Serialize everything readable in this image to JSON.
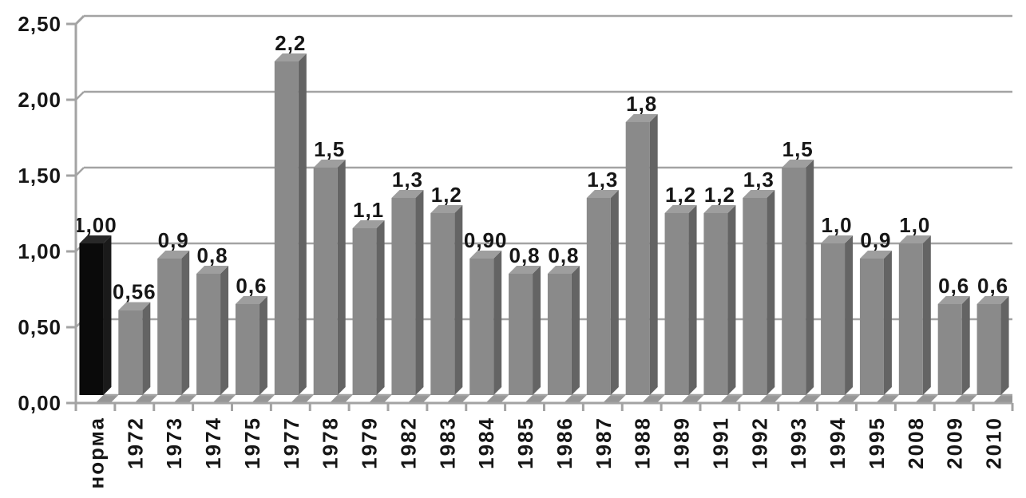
{
  "chart_data": {
    "type": "bar",
    "style": "3d-column",
    "title": "",
    "xlabel": "",
    "ylabel": "",
    "ylim": [
      0,
      2.5
    ],
    "grid": true,
    "legend": "none",
    "categories": [
      "норма",
      "1972",
      "1973",
      "1974",
      "1975",
      "1977",
      "1978",
      "1979",
      "1982",
      "1983",
      "1984",
      "1985",
      "1986",
      "1987",
      "1988",
      "1989",
      "1991",
      "1992",
      "1993",
      "1994",
      "1995",
      "2008",
      "2009",
      "2010"
    ],
    "values": [
      1.0,
      0.56,
      0.9,
      0.8,
      0.6,
      2.2,
      1.5,
      1.1,
      1.3,
      1.2,
      0.9,
      0.8,
      0.8,
      1.3,
      1.8,
      1.2,
      1.2,
      1.3,
      1.5,
      1.0,
      0.9,
      1.0,
      0.6,
      0.6
    ],
    "value_labels": [
      "1,00",
      "0,56",
      "0,9",
      "0,8",
      "0,6",
      "2,2",
      "1,5",
      "1,1",
      "1,3",
      "1,2",
      "0,90",
      "0,8",
      "0,8",
      "1,3",
      "1,8",
      "1,2",
      "1,2",
      "1,3",
      "1,5",
      "1,0",
      "0,9",
      "1,0",
      "0,6",
      "0,6"
    ],
    "y_axis": [
      {
        "value": 0,
        "label": "0,00"
      },
      {
        "value": 0.5,
        "label": "0,50"
      },
      {
        "value": 1,
        "label": "1,00"
      },
      {
        "value": 1.5,
        "label": "1,50"
      },
      {
        "value": 2,
        "label": "2,00"
      },
      {
        "value": 2.5,
        "label": "2,50"
      }
    ],
    "highlight": {
      "index": 0,
      "category": "норма"
    },
    "colors": {
      "bar_front": "#8a8a8a",
      "bar_side": "#646464",
      "bar_top": "#9e9e9e",
      "highlight_front": "#0a0a0a",
      "highlight_side": "#1a1a1a",
      "highlight_top": "#282828",
      "grid": "#a3a3a3",
      "floor": "#969696",
      "text": "#161616",
      "background": "#ffffff"
    }
  }
}
